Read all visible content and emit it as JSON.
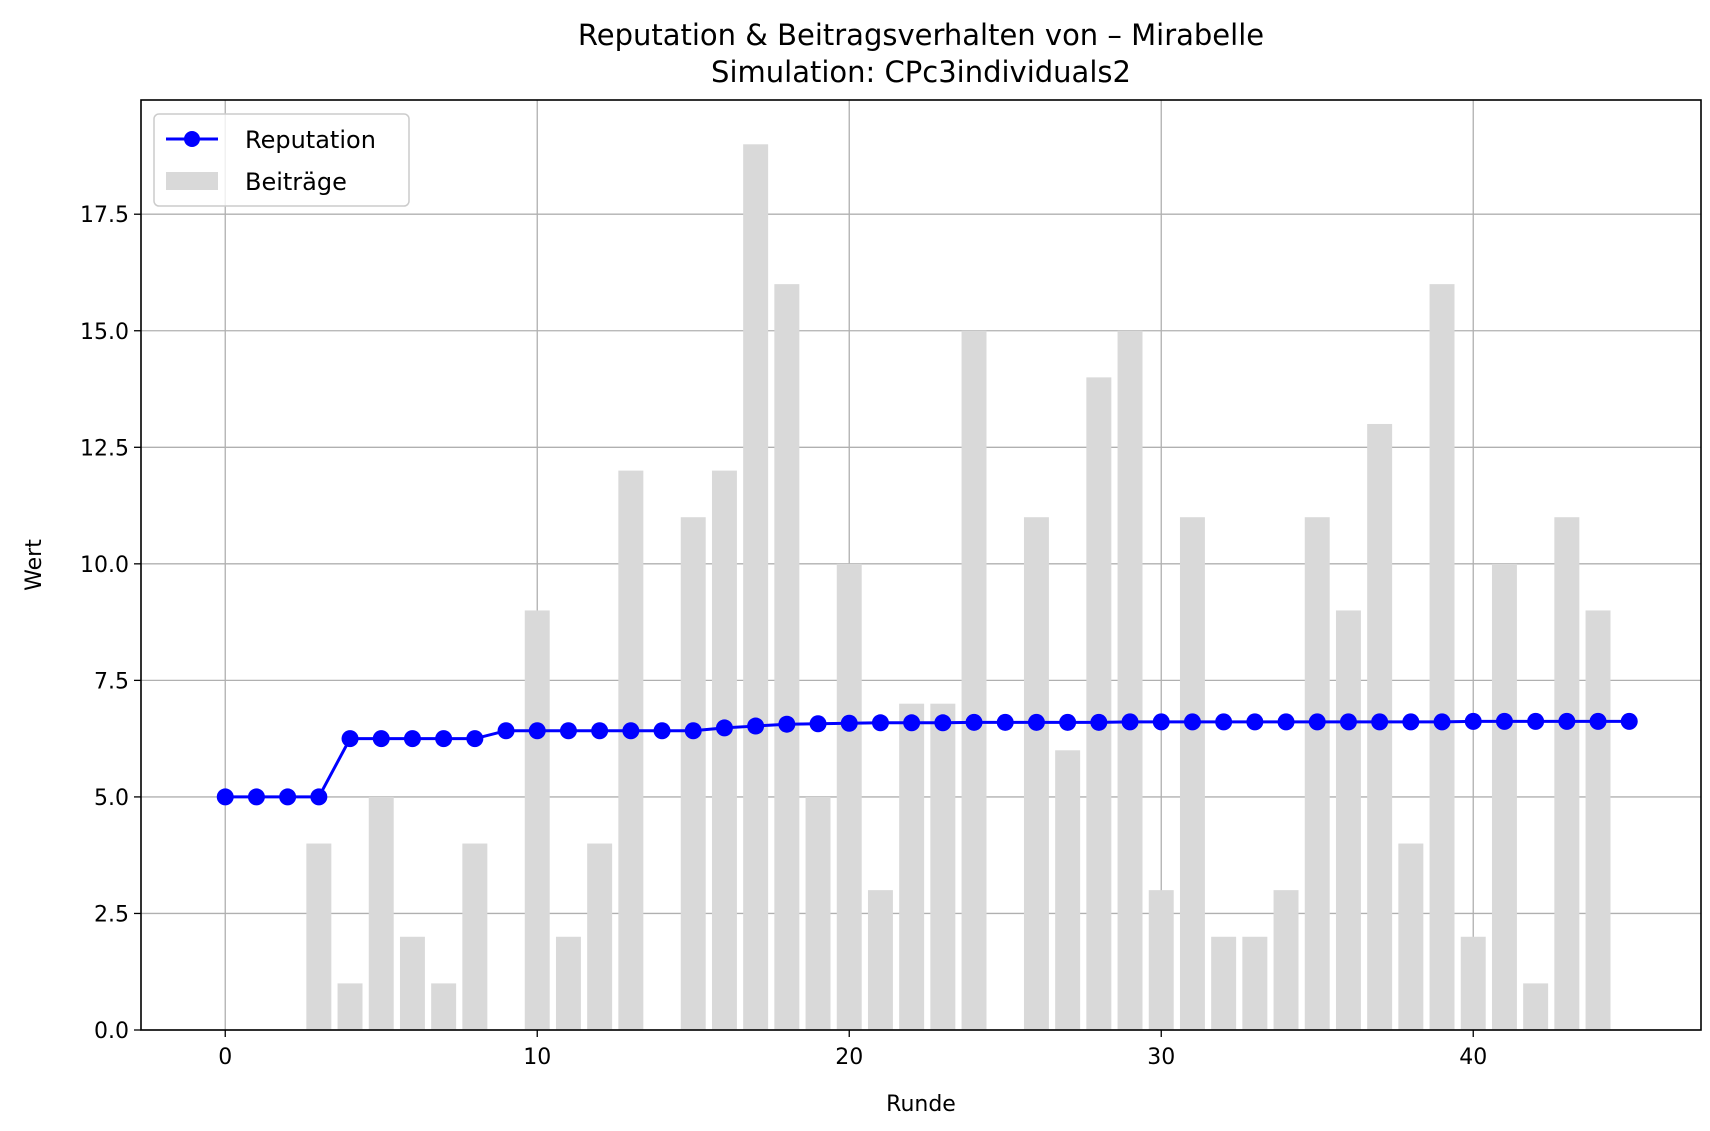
{
  "chart_data": {
    "type": "bar",
    "title": "Reputation & Beitragsverhalten von – Mirabelle",
    "subtitle": "Simulation: CPc3individuals2",
    "xlabel": "Runde",
    "ylabel": "Wert",
    "xlim": [
      -2.7,
      47.3
    ],
    "ylim": [
      0,
      19.95
    ],
    "xticks": [
      0,
      10,
      20,
      30,
      40
    ],
    "xtick_labels": [
      "0",
      "10",
      "20",
      "30",
      "40"
    ],
    "yticks": [
      0,
      2.5,
      5,
      7.5,
      10,
      12.5,
      15,
      17.5
    ],
    "ytick_labels": [
      "0.0",
      "2.5",
      "5.0",
      "7.5",
      "10.0",
      "12.5",
      "15.0",
      "17.5"
    ],
    "grid": true,
    "legend_position": "upper-left",
    "colors": {
      "reputation": "#0000ff",
      "contributions": "#d9d9d9",
      "grid": "#b0b0b0"
    },
    "series": [
      {
        "name": "Reputation",
        "type": "line",
        "marker": "circle",
        "x": [
          0,
          1,
          2,
          3,
          4,
          5,
          6,
          7,
          8,
          9,
          10,
          11,
          12,
          13,
          14,
          15,
          16,
          17,
          18,
          19,
          20,
          21,
          22,
          23,
          24,
          25,
          26,
          27,
          28,
          29,
          30,
          31,
          32,
          33,
          34,
          35,
          36,
          37,
          38,
          39,
          40,
          41,
          42,
          43,
          44,
          45
        ],
        "values": [
          5.0,
          5.0,
          5.0,
          5.0,
          6.25,
          6.25,
          6.25,
          6.25,
          6.25,
          6.42,
          6.42,
          6.42,
          6.42,
          6.42,
          6.42,
          6.42,
          6.48,
          6.52,
          6.56,
          6.57,
          6.58,
          6.59,
          6.59,
          6.59,
          6.6,
          6.6,
          6.6,
          6.6,
          6.6,
          6.61,
          6.61,
          6.61,
          6.61,
          6.61,
          6.61,
          6.61,
          6.61,
          6.61,
          6.61,
          6.61,
          6.62,
          6.62,
          6.62,
          6.62,
          6.62,
          6.62
        ]
      },
      {
        "name": "Beiträge",
        "type": "bar",
        "x": [
          0,
          1,
          2,
          3,
          4,
          5,
          6,
          7,
          8,
          9,
          10,
          11,
          12,
          13,
          14,
          15,
          16,
          17,
          18,
          19,
          20,
          21,
          22,
          23,
          24,
          25,
          26,
          27,
          28,
          29,
          30,
          31,
          32,
          33,
          34,
          35,
          36,
          37,
          38,
          39,
          40,
          41,
          42,
          43,
          44
        ],
        "values": [
          0,
          0,
          0,
          4,
          1,
          5,
          2,
          1,
          4,
          0,
          9,
          2,
          4,
          12,
          0,
          11,
          12,
          19,
          16,
          5,
          10,
          3,
          7,
          7,
          15,
          0,
          11,
          6,
          14,
          15,
          3,
          11,
          2,
          2,
          3,
          11,
          9,
          13,
          4,
          16,
          2,
          10,
          1,
          11,
          9
        ]
      }
    ]
  }
}
